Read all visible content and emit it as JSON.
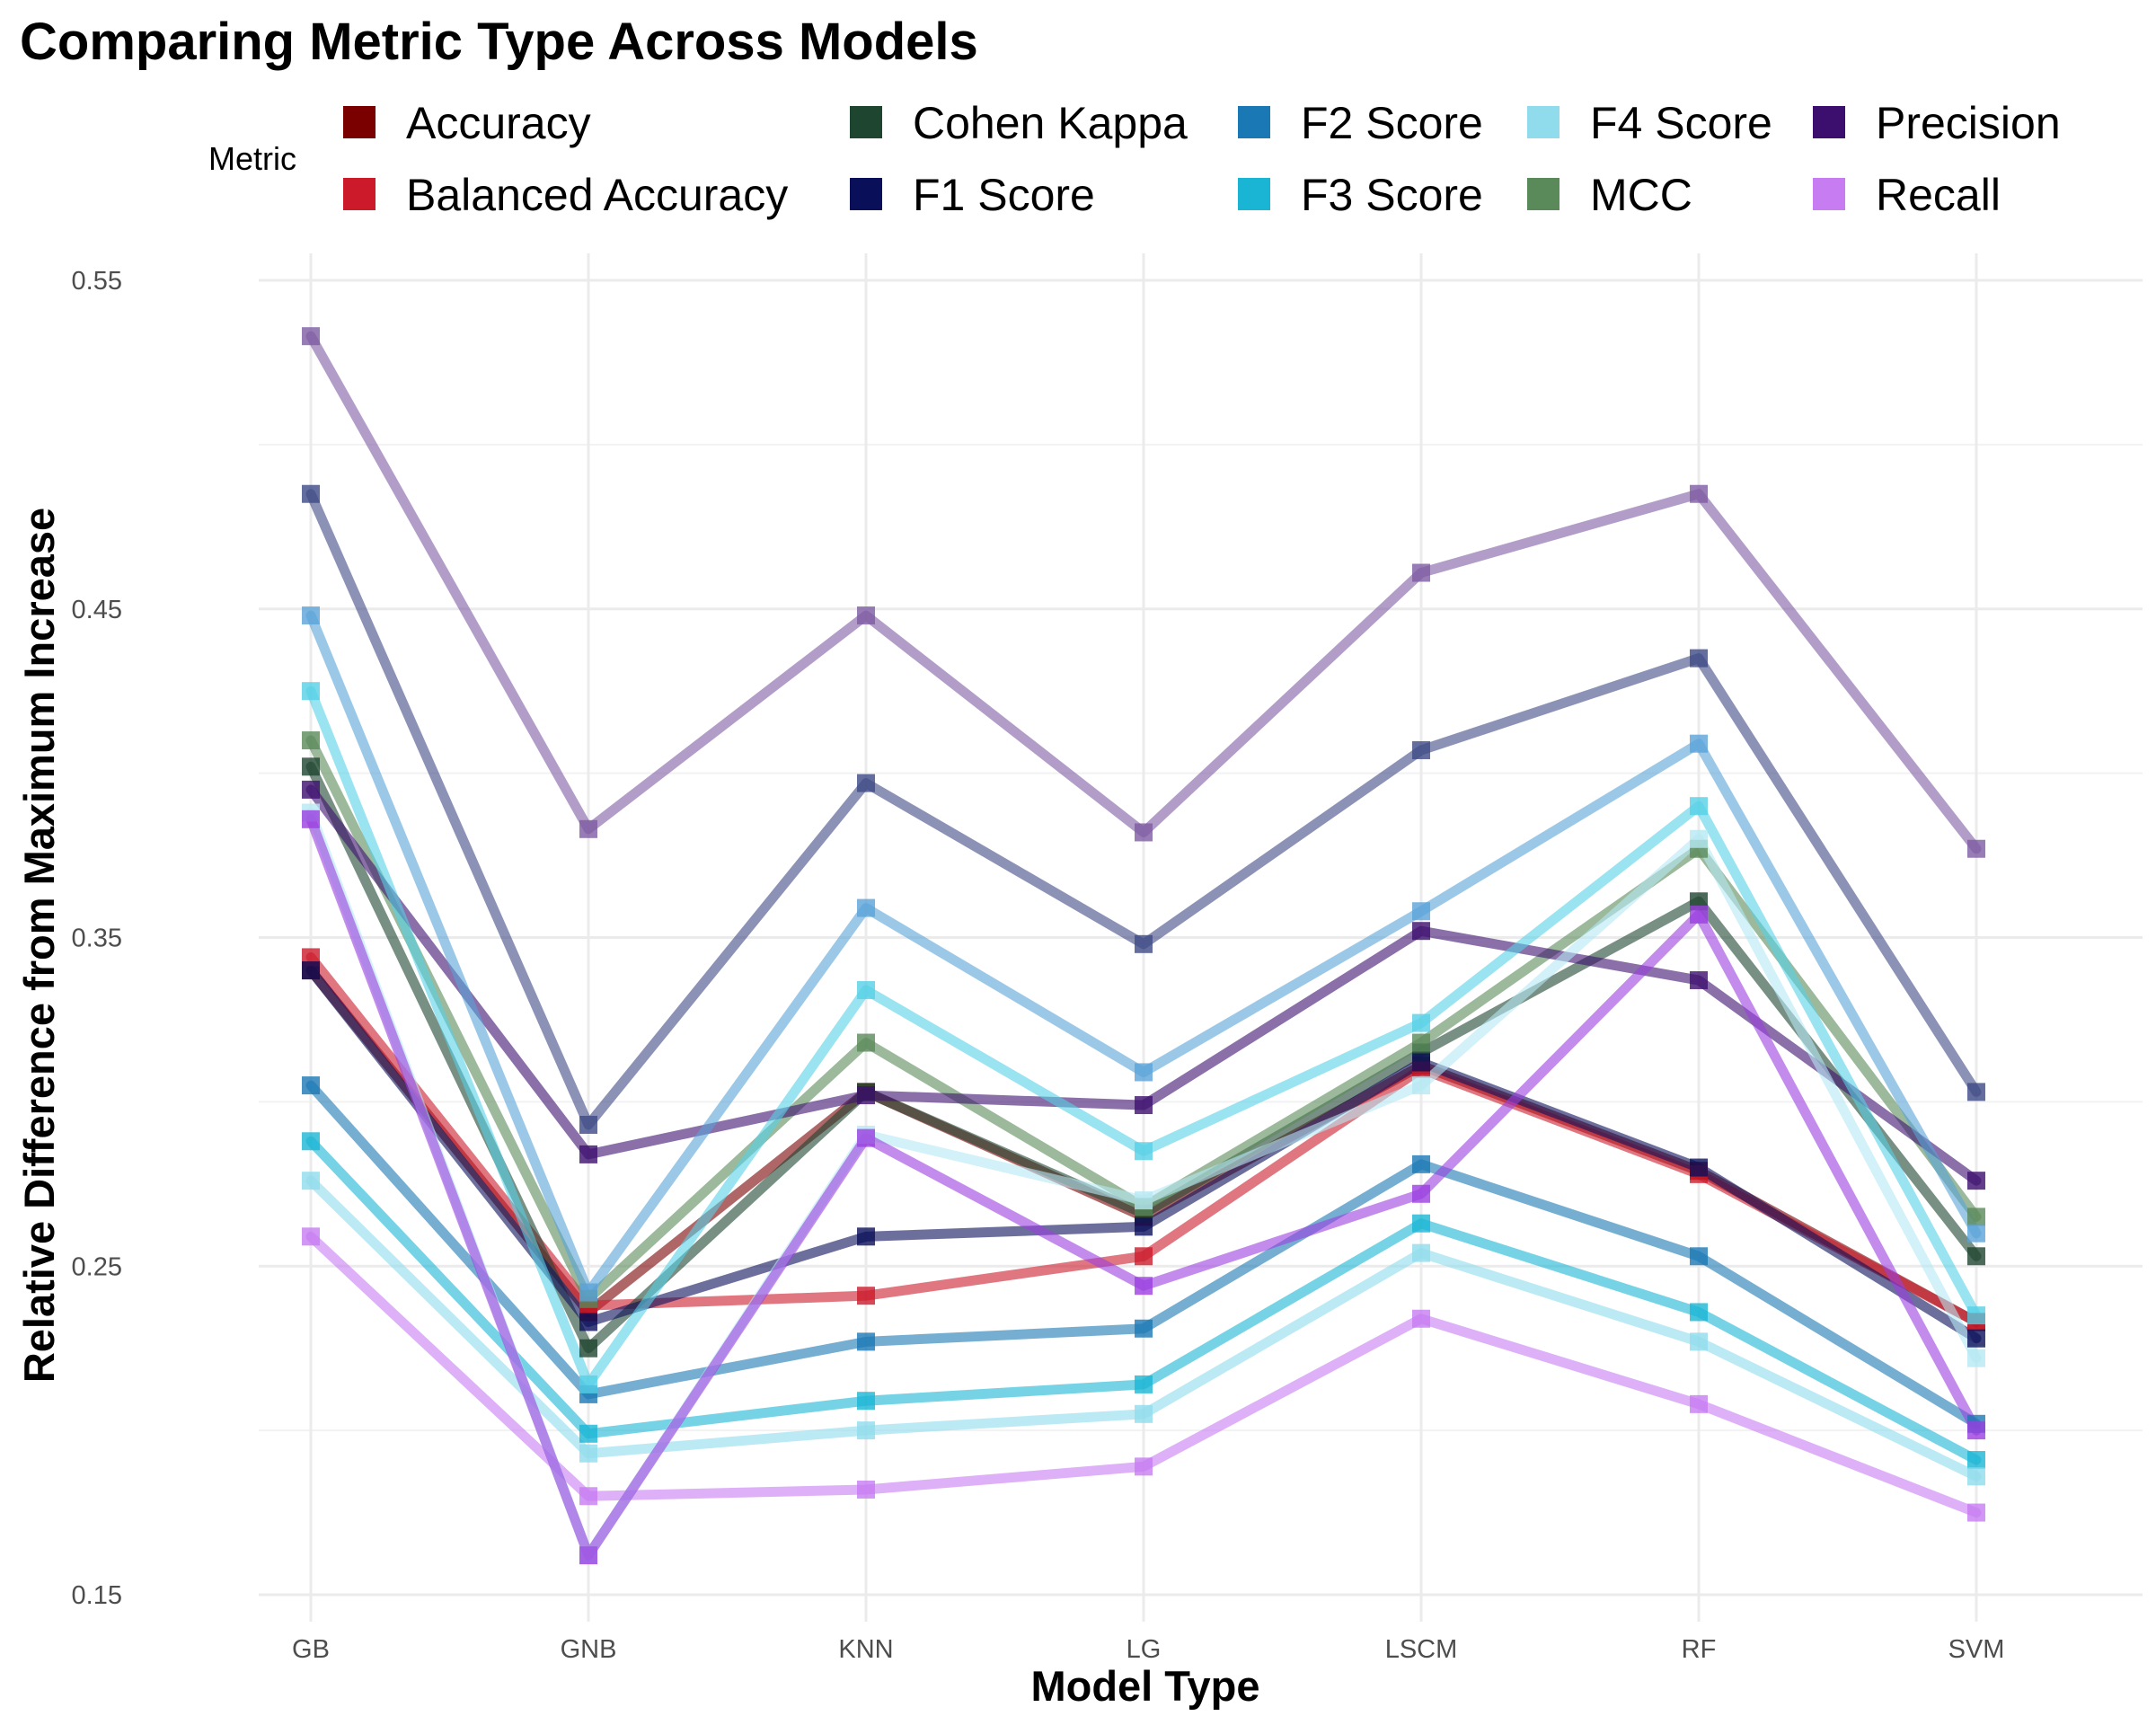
{
  "chart_data": {
    "type": "line",
    "title": "Comparing Metric Type Across Models",
    "xlabel": "Model Type",
    "ylabel": "Relative Difference from Maximum Increase",
    "legend_title": "Metric",
    "legend_position": "top",
    "grid": true,
    "categories": [
      "GB",
      "GNB",
      "KNN",
      "LG",
      "LSCM",
      "RF",
      "SVM"
    ],
    "ylim": [
      0.15,
      0.55
    ],
    "yticks": [
      "0.15",
      "0.25",
      "0.35",
      "0.45",
      "0.55"
    ],
    "series": [
      {
        "name": "Accuracy",
        "color": "#7a0000",
        "values": [
          0.34,
          0.236,
          0.303,
          0.265,
          0.311,
          0.279,
          0.233
        ]
      },
      {
        "name": "Balanced Accuracy",
        "color": "#cc1a2b",
        "values": [
          0.344,
          0.238,
          0.241,
          0.253,
          0.31,
          0.278,
          0.233
        ]
      },
      {
        "name": "Cohen Kappa",
        "color": "#1e4530",
        "values": [
          0.402,
          0.225,
          0.303,
          0.266,
          0.315,
          0.361,
          0.253
        ]
      },
      {
        "name": "F1 Score",
        "color": "#0a0f5a",
        "values": [
          0.34,
          0.233,
          0.259,
          0.262,
          0.312,
          0.28,
          0.228
        ]
      },
      {
        "name": "F2 Score",
        "color": "#1a78b4",
        "values": [
          0.305,
          0.211,
          0.227,
          0.231,
          0.281,
          0.253,
          0.202
        ]
      },
      {
        "name": "F3 Score",
        "color": "#1ab5d4",
        "values": [
          0.288,
          0.199,
          0.209,
          0.214,
          0.263,
          0.236,
          0.191
        ]
      },
      {
        "name": "F4 Score",
        "color": "#90dcec",
        "values": [
          0.276,
          0.193,
          0.2,
          0.205,
          0.254,
          0.227,
          0.186
        ]
      },
      {
        "name": "MCC",
        "color": "#5a8a5a",
        "values": [
          0.41,
          0.24,
          0.318,
          0.268,
          0.318,
          0.377,
          0.265
        ]
      },
      {
        "name": "Precision",
        "color": "#3c0f6e",
        "values": [
          0.395,
          0.284,
          0.302,
          0.299,
          0.352,
          0.337,
          0.276
        ]
      },
      {
        "name": "Recall",
        "color": "#c77cf2",
        "values": [
          0.259,
          0.18,
          0.182,
          0.189,
          0.234,
          0.208,
          0.175
        ]
      },
      {
        "name": "",
        "color": "#7e5ba3",
        "values": [
          0.533,
          0.383,
          0.448,
          0.382,
          0.461,
          0.485,
          0.377
        ]
      },
      {
        "name": "",
        "color": "#3d4a86",
        "values": [
          0.485,
          0.293,
          0.397,
          0.348,
          0.407,
          0.435,
          0.303
        ]
      },
      {
        "name": "",
        "color": "#5aa3d8",
        "values": [
          0.448,
          0.242,
          0.359,
          0.309,
          0.358,
          0.409,
          0.26
        ]
      },
      {
        "name": "",
        "color": "#56d0e6",
        "values": [
          0.425,
          0.214,
          0.334,
          0.285,
          0.324,
          0.39,
          0.235
        ]
      },
      {
        "name": "",
        "color": "#b6e8f3",
        "values": [
          0.388,
          0.162,
          0.29,
          0.27,
          0.305,
          0.38,
          0.222
        ]
      },
      {
        "name": "",
        "color": "#9b3fe0",
        "values": [
          0.386,
          0.162,
          0.289,
          0.244,
          0.272,
          0.357,
          0.2
        ]
      }
    ]
  }
}
